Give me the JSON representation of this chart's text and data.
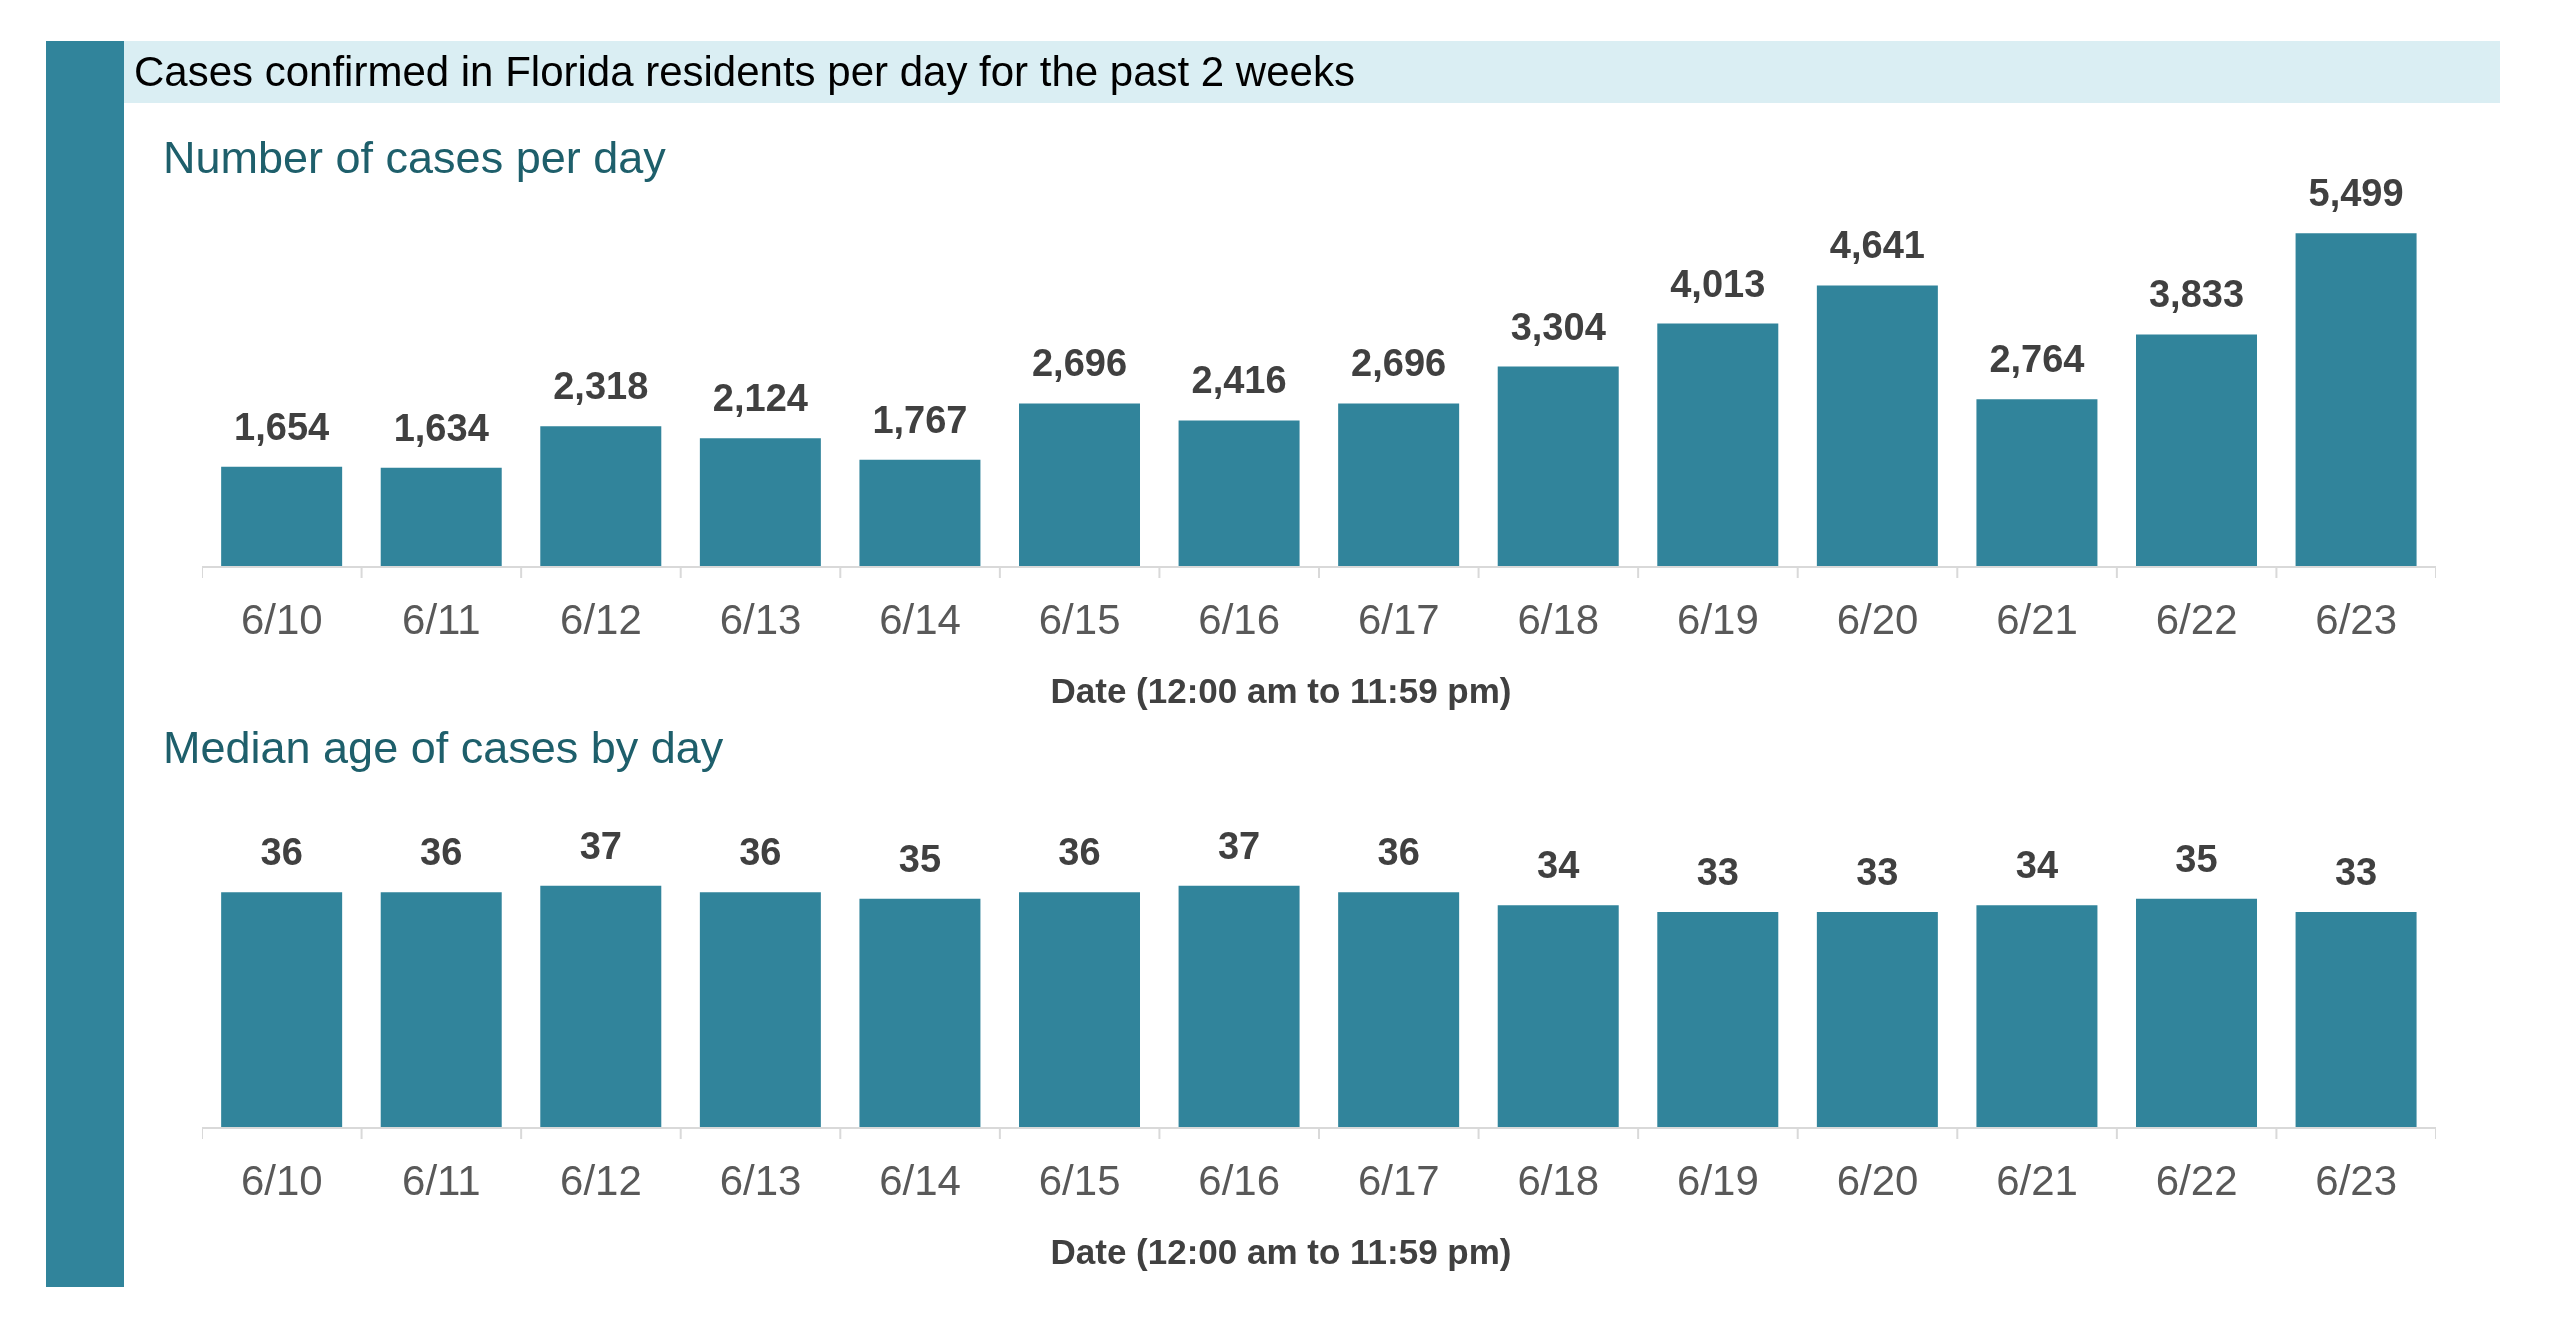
{
  "chart_data": [
    {
      "type": "bar",
      "title": "Cases confirmed in Florida residents per day for the past 2 weeks",
      "subtitle": "Number of cases per day",
      "xlabel": "Date (12:00 am to 11:59 pm)",
      "categories": [
        "6/10",
        "6/11",
        "6/12",
        "6/13",
        "6/14",
        "6/15",
        "6/16",
        "6/17",
        "6/18",
        "6/19",
        "6/20",
        "6/21",
        "6/22",
        "6/23"
      ],
      "values": [
        1654,
        1634,
        2318,
        2124,
        1767,
        2696,
        2416,
        2696,
        3304,
        4013,
        4641,
        2764,
        3833,
        5499
      ],
      "value_labels": [
        "1,654",
        "1,634",
        "2,318",
        "2,124",
        "1,767",
        "2,696",
        "2,416",
        "2,696",
        "3,304",
        "4,013",
        "4,641",
        "2,764",
        "3,833",
        "5,499"
      ],
      "color": "#31849b",
      "tick_labels": "x"
    },
    {
      "type": "bar",
      "title": "Median age of cases by day",
      "xlabel": "Date (12:00 am to 11:59 pm)",
      "categories": [
        "6/10",
        "6/11",
        "6/12",
        "6/13",
        "6/14",
        "6/15",
        "6/16",
        "6/17",
        "6/18",
        "6/19",
        "6/20",
        "6/21",
        "6/22",
        "6/23"
      ],
      "values": [
        36,
        36,
        37,
        36,
        35,
        36,
        37,
        36,
        34,
        33,
        33,
        34,
        35,
        33
      ],
      "color": "#31849b",
      "data_labels": true,
      "tick_labels": "x"
    }
  ]
}
